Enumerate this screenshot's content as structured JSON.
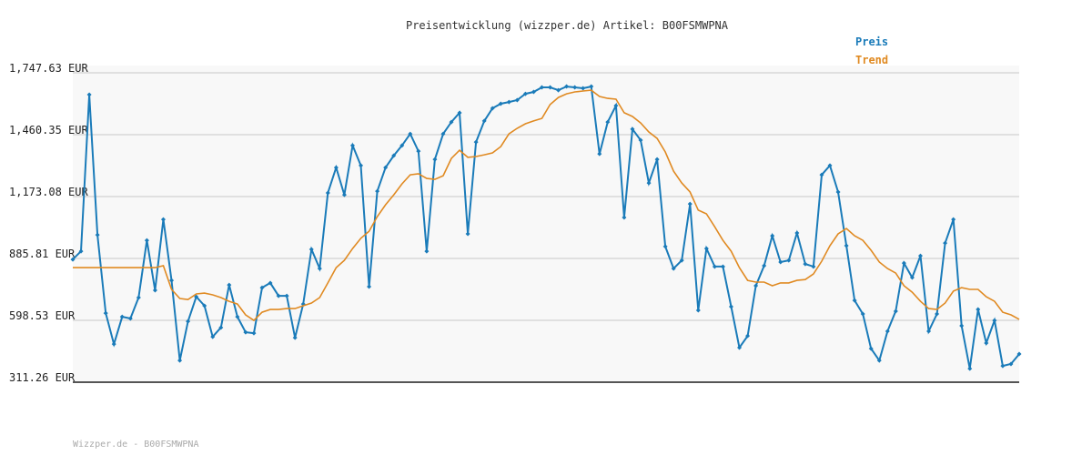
{
  "chart_data": {
    "type": "line",
    "title": "Preisentwicklung (wizzper.de) Artikel: B00FSMWPNA",
    "footer": "Wizzper.de - B00FSMWPNA",
    "ylim": [
      311.26,
      1747.63
    ],
    "yticks": [
      {
        "value": 311.26,
        "label": "311.26 EUR"
      },
      {
        "value": 598.53,
        "label": "598.53 EUR"
      },
      {
        "value": 885.81,
        "label": "885.81 EUR"
      },
      {
        "value": 1173.08,
        "label": "1,173.08 EUR"
      },
      {
        "value": 1460.35,
        "label": "1,460.35 EUR"
      },
      {
        "value": 1747.63,
        "label": "1,747.63 EUR"
      }
    ],
    "grid": true,
    "legend": "top-right",
    "series": [
      {
        "name": "Preis",
        "color": "#1a7bb9",
        "markers": true,
        "values": [
          881,
          919,
          1646,
          995,
          632,
          488,
          615,
          607,
          704,
          970,
          738,
          1067,
          784,
          412,
          594,
          708,
          666,
          522,
          565,
          763,
          615,
          543,
          539,
          750,
          772,
          712,
          712,
          518,
          674,
          928,
          839,
          1190,
          1308,
          1181,
          1410,
          1317,
          755,
          1198,
          1308,
          1363,
          1410,
          1464,
          1384,
          919,
          1346,
          1464,
          1519,
          1562,
          1000,
          1426,
          1524,
          1583,
          1604,
          1612,
          1621,
          1650,
          1659,
          1680,
          1680,
          1667,
          1684,
          1680,
          1676,
          1684,
          1371,
          1519,
          1595,
          1076,
          1486,
          1435,
          1236,
          1346,
          941,
          839,
          877,
          1139,
          645,
          932,
          848,
          848,
          662,
          472,
          526,
          759,
          852,
          991,
          869,
          877,
          1004,
          860,
          848,
          1274,
          1317,
          1194,
          945,
          691,
          628,
          467,
          412,
          548,
          641,
          864,
          797,
          898,
          548,
          628,
          957,
          1067,
          573,
          374,
          649,
          493,
          598,
          387,
          396,
          442
        ]
      },
      {
        "name": "Trend",
        "color": "#e08a22",
        "markers": false,
        "values": [
          843,
          843,
          843,
          843,
          843,
          843,
          843,
          843,
          843,
          843,
          843,
          852,
          742,
          700,
          695,
          721,
          725,
          717,
          704,
          687,
          674,
          624,
          598,
          636,
          649,
          649,
          653,
          653,
          666,
          679,
          704,
          772,
          843,
          877,
          932,
          979,
          1012,
          1080,
          1135,
          1181,
          1232,
          1274,
          1279,
          1257,
          1253,
          1270,
          1350,
          1388,
          1355,
          1359,
          1367,
          1376,
          1405,
          1464,
          1490,
          1511,
          1524,
          1536,
          1600,
          1633,
          1650,
          1659,
          1663,
          1667,
          1638,
          1629,
          1625,
          1562,
          1545,
          1515,
          1473,
          1443,
          1380,
          1291,
          1236,
          1194,
          1110,
          1093,
          1033,
          970,
          919,
          843,
          784,
          776,
          776,
          759,
          772,
          772,
          784,
          788,
          814,
          873,
          945,
          1000,
          1025,
          991,
          970,
          924,
          869,
          839,
          818,
          759,
          729,
          687,
          653,
          649,
          679,
          734,
          750,
          742,
          742,
          708,
          687,
          636,
          624,
          603
        ]
      }
    ]
  }
}
